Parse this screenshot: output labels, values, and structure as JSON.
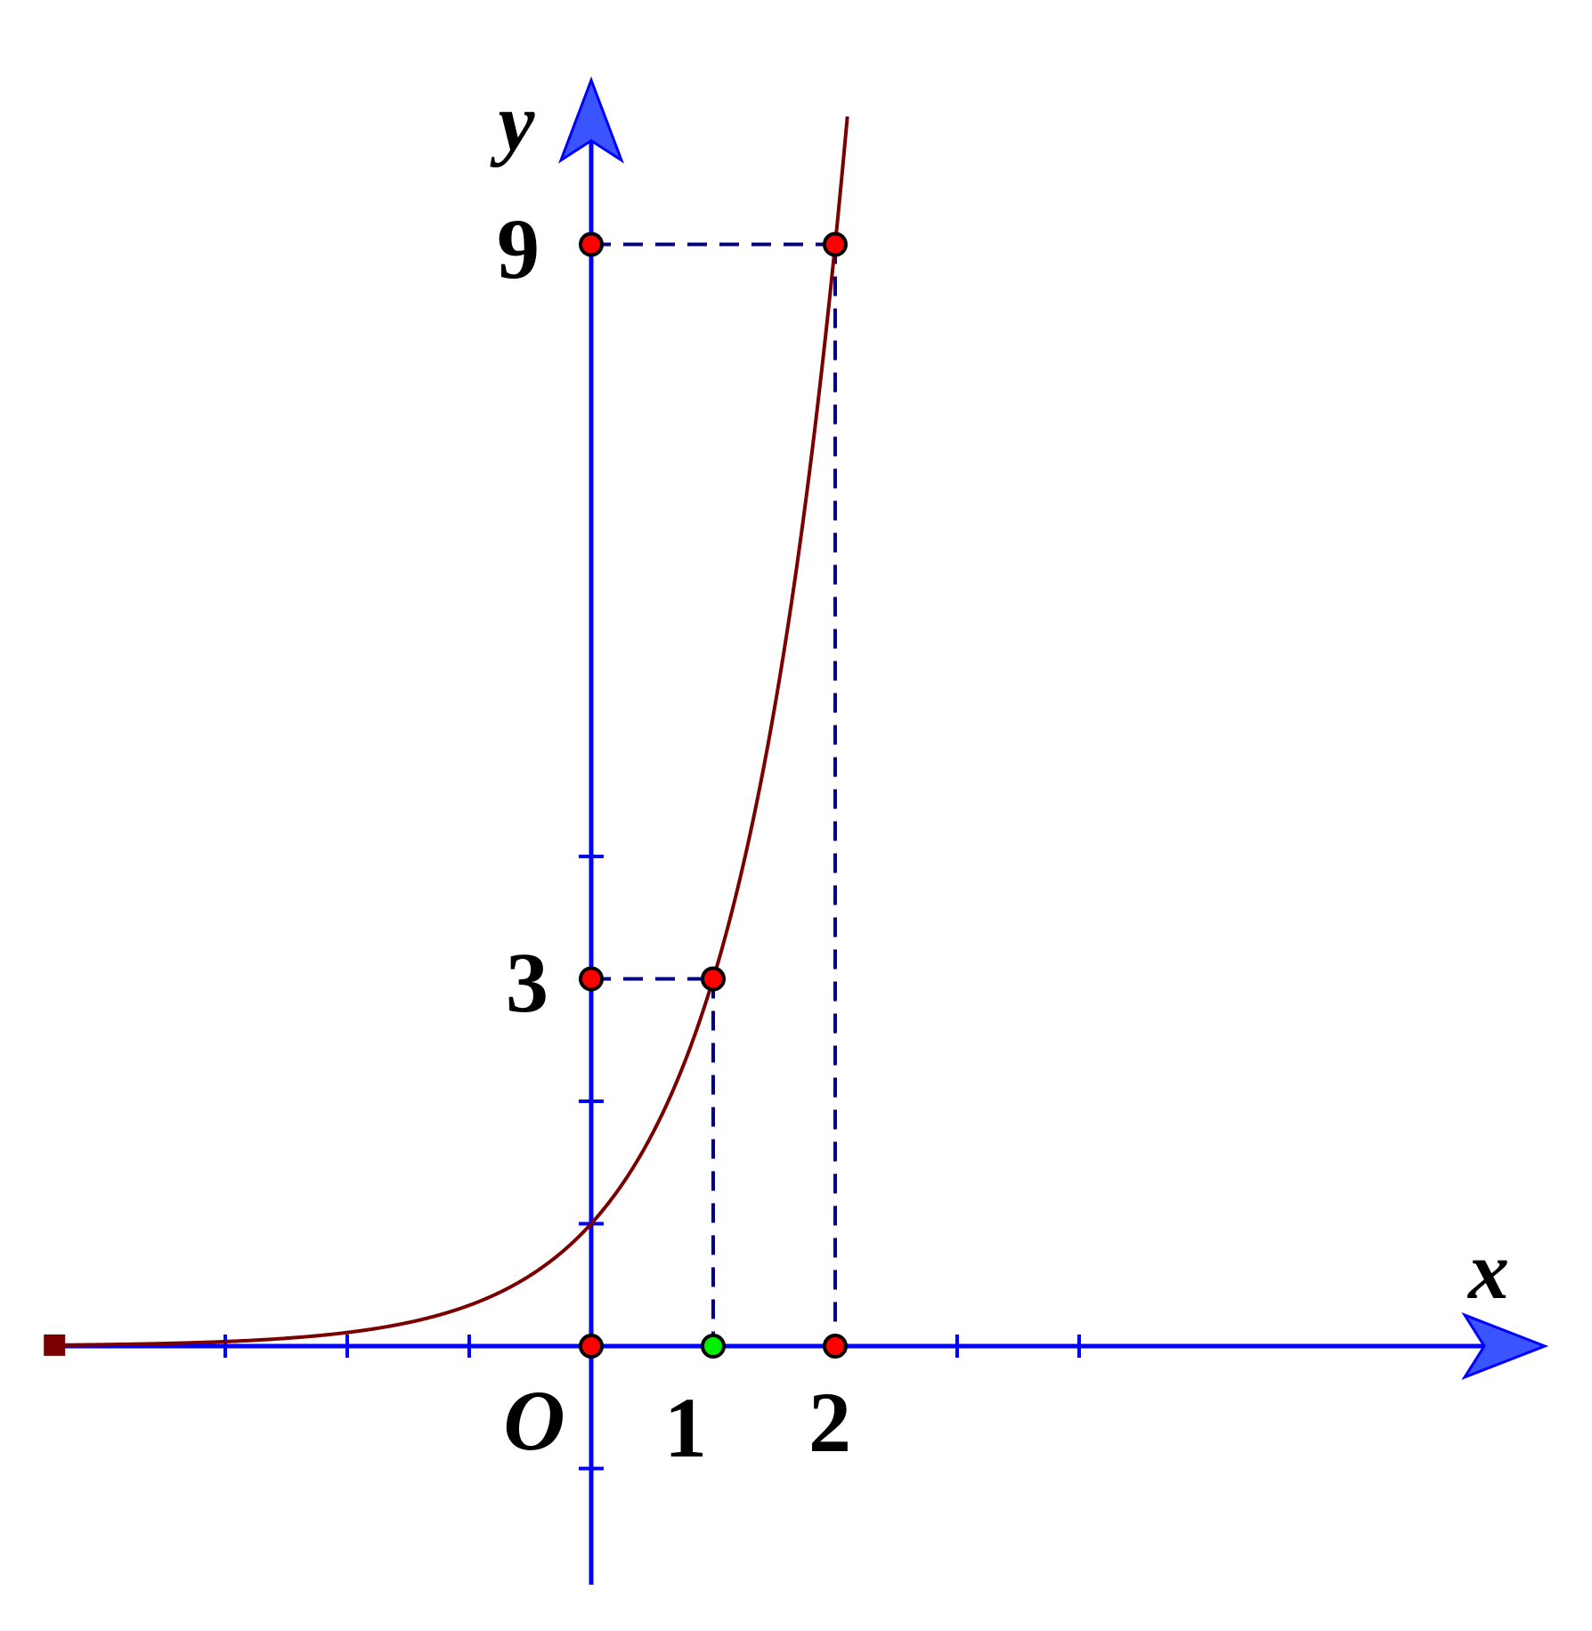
{
  "chart_data": {
    "type": "line",
    "function": "y = 3^x",
    "xlabel": "x",
    "ylabel": "y",
    "origin_label": "O",
    "xlim": [
      -4.4,
      7.9
    ],
    "ylim": [
      -1.95,
      10.3
    ],
    "x_ticks": [
      -3,
      -2,
      -1,
      1,
      2,
      3,
      4
    ],
    "y_ticks": [
      -1,
      1,
      2,
      3,
      4
    ],
    "x_tick_labels": [
      "1",
      "2"
    ],
    "y_tick_labels": [
      "3",
      "9"
    ],
    "series": [
      {
        "color": "#7a0000",
        "x_start": -4.4,
        "x_end": 2.1,
        "points": [
          {
            "x": -4.4,
            "y": 0.008
          },
          {
            "x": -3,
            "y": 0.037
          },
          {
            "x": -2,
            "y": 0.111
          },
          {
            "x": -1,
            "y": 0.333
          },
          {
            "x": 0,
            "y": 1
          },
          {
            "x": 0.5,
            "y": 1.732
          },
          {
            "x": 1,
            "y": 3
          },
          {
            "x": 1.5,
            "y": 5.196
          },
          {
            "x": 2,
            "y": 9
          }
        ]
      }
    ],
    "marked_points": [
      {
        "x": 0,
        "y": 0,
        "color": "#ff0000"
      },
      {
        "x": 1,
        "y": 0,
        "color": "#00ee00"
      },
      {
        "x": 2,
        "y": 0,
        "color": "#ff0000"
      },
      {
        "x": 0,
        "y": 3,
        "color": "#ff0000"
      },
      {
        "x": 1,
        "y": 3,
        "color": "#ff0000"
      },
      {
        "x": 0,
        "y": 9,
        "color": "#ff0000"
      },
      {
        "x": 2,
        "y": 9,
        "color": "#ff0000"
      }
    ],
    "guide_lines": [
      {
        "from": [
          0,
          3
        ],
        "to": [
          1,
          3
        ]
      },
      {
        "from": [
          1,
          3
        ],
        "to": [
          1,
          0
        ]
      },
      {
        "from": [
          0,
          9
        ],
        "to": [
          2,
          9
        ]
      },
      {
        "from": [
          2,
          9
        ],
        "to": [
          2,
          0
        ]
      }
    ],
    "colors": {
      "axis": "#0000ff",
      "arrow_fill": "#3a55ff",
      "curve": "#7a0000",
      "guide": "#000080",
      "point_stroke": "#000000"
    }
  }
}
